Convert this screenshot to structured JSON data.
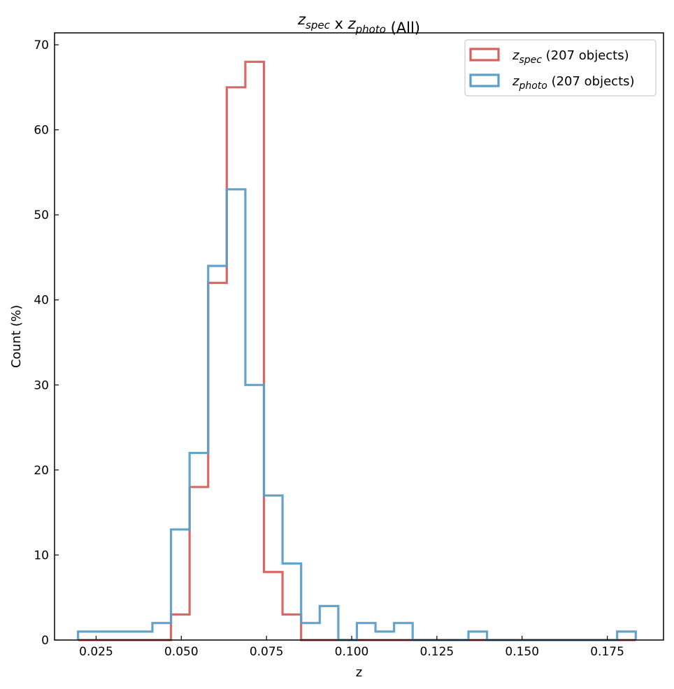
{
  "chart_data": {
    "type": "histogram",
    "title": {
      "parts": [
        {
          "base": "z",
          "sub": "spec"
        },
        {
          "text": " x "
        },
        {
          "base": "z",
          "sub": "photo"
        },
        {
          "text": " (All)"
        }
      ]
    },
    "xlabel": "z",
    "ylabel": "Count (%)",
    "xlim": [
      0.0128,
      0.1915
    ],
    "ylim": [
      0,
      71.4
    ],
    "xticks": [
      0.025,
      0.05,
      0.075,
      0.1,
      0.125,
      0.15,
      0.175
    ],
    "xtick_labels": [
      "0.025",
      "0.050",
      "0.075",
      "0.100",
      "0.125",
      "0.150",
      "0.175"
    ],
    "yticks": [
      0,
      10,
      20,
      30,
      40,
      50,
      60,
      70
    ],
    "ytick_labels": [
      "0",
      "10",
      "20",
      "30",
      "40",
      "50",
      "60",
      "70"
    ],
    "legend_position": "top-right",
    "series": [
      {
        "name": "spec",
        "legend_base": "z",
        "legend_sub": "spec",
        "legend_text": " (207 objects)",
        "color": "#d95f5f",
        "bin_start": 0.0197,
        "bin_width": 0.005455,
        "values": [
          0,
          0,
          0,
          0,
          0,
          3,
          18,
          42,
          65,
          68,
          8,
          3,
          0,
          0,
          0,
          0,
          0,
          0,
          0,
          0,
          0,
          0,
          0,
          0,
          0,
          0,
          0,
          0,
          0,
          0
        ]
      },
      {
        "name": "photo",
        "legend_base": "z",
        "legend_sub": "photo",
        "legend_text": " (207 objects)",
        "color": "#5b9ec9",
        "bin_start": 0.0197,
        "bin_width": 0.005455,
        "values": [
          1,
          1,
          1,
          1,
          2,
          13,
          22,
          44,
          53,
          30,
          17,
          9,
          2,
          4,
          0,
          2,
          1,
          2,
          0,
          0,
          0,
          1,
          0,
          0,
          0,
          0,
          0,
          0,
          0,
          1
        ]
      }
    ]
  }
}
